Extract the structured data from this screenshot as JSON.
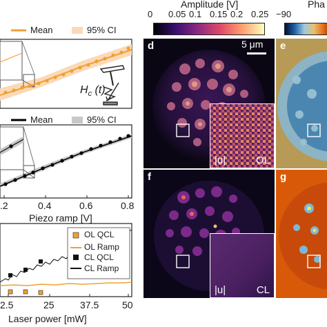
{
  "colorbars": {
    "amplitude": {
      "title": "Amplitude [V]",
      "ticks": [
        "0",
        "0.05",
        "0.1",
        "0.15",
        "0.2",
        "0.25"
      ],
      "colors": [
        "#000004",
        "#3b0f70",
        "#8c2981",
        "#de4968",
        "#fe9f6d",
        "#fcfdbf"
      ]
    },
    "phase": {
      "title": "Pha",
      "ticks": [
        "−90"
      ],
      "colors": [
        "#001030",
        "#1f5fa8",
        "#9cc8e0",
        "#e8c070",
        "#e46a14",
        "#7a1a00"
      ]
    }
  },
  "panel_top": {
    "legend": {
      "mean_label": "Mean",
      "ci_label": "95% CI",
      "mean_color": "#f0a030",
      "ci_color": "#fbd9b8"
    },
    "hc_label": "H",
    "hc_sub": "c",
    "hc_arg": " (t)"
  },
  "panel_mid": {
    "legend": {
      "mean_label": "Mean",
      "ci_label": "95% CI",
      "mean_color": "#000000",
      "ci_color": "#c8c8c8"
    },
    "xticks": [
      ".2",
      "0.4",
      "0.6",
      "0.8"
    ],
    "xlabel": "Piezo ramp [V]"
  },
  "panel_bottom": {
    "legend": [
      {
        "label": "OL QCL",
        "kind": "square",
        "color": "#f0a030"
      },
      {
        "label": "OL Ramp",
        "kind": "line",
        "color": "#f0a030"
      },
      {
        "label": "CL QCL",
        "kind": "square",
        "color": "#000000"
      },
      {
        "label": "CL Ramp",
        "kind": "line",
        "color": "#000000"
      }
    ],
    "xticks": [
      "2.5",
      "25",
      "37.5",
      "50"
    ],
    "xlabel": "Laser power [mW]"
  },
  "images": {
    "d": {
      "letter": "d",
      "scale_bar": "5 μm",
      "inset_left": "|u|",
      "inset_right": "OL"
    },
    "e": {
      "letter": "e"
    },
    "f": {
      "letter": "f",
      "inset_left": "|u|",
      "inset_right": "CL"
    },
    "g": {
      "letter": "g"
    }
  }
}
